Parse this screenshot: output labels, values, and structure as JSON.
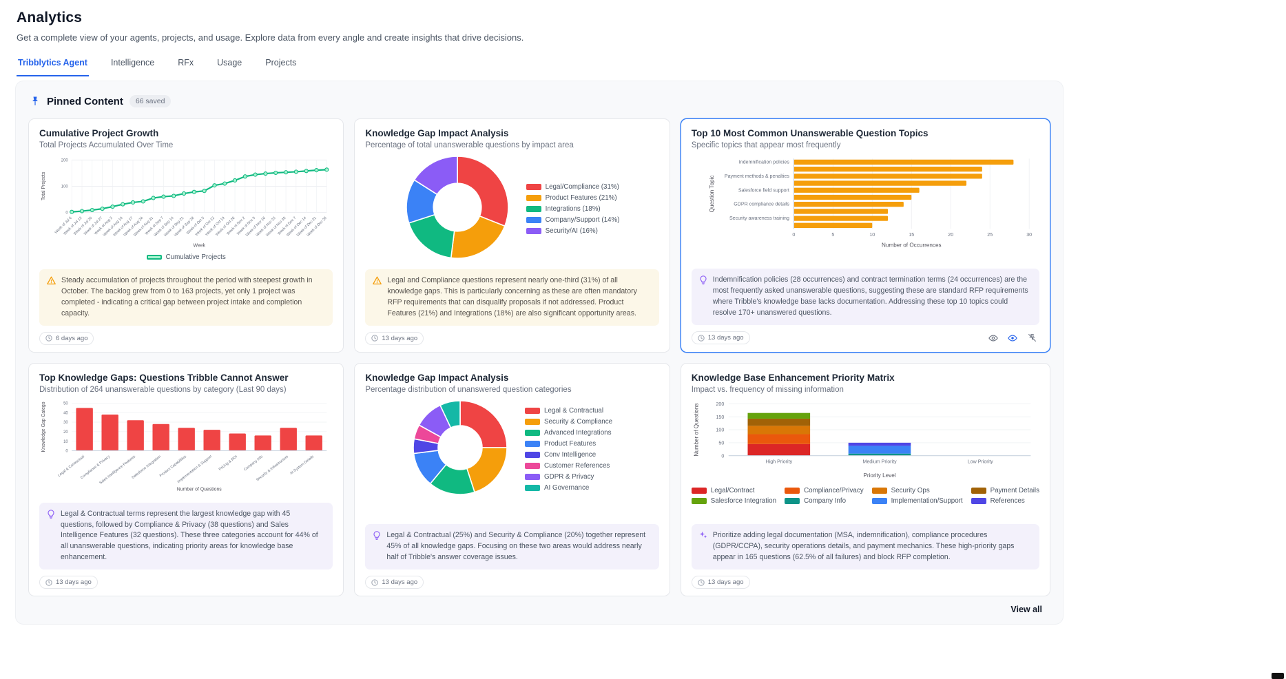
{
  "page": {
    "title": "Analytics",
    "subtitle": "Get a complete view of your agents, projects, and usage. Explore data from every angle and create insights that drive decisions."
  },
  "tabs": [
    {
      "label": "Tribblytics Agent",
      "active": true
    },
    {
      "label": "Intelligence",
      "active": false
    },
    {
      "label": "RFx",
      "active": false
    },
    {
      "label": "Usage",
      "active": false
    },
    {
      "label": "Projects",
      "active": false
    }
  ],
  "pinned": {
    "title": "Pinned Content",
    "badge": "66 saved",
    "view_all": "View all"
  },
  "cards": [
    {
      "title": "Cumulative Project Growth",
      "subtitle": "Total Projects Accumulated Over Time",
      "insight": "Steady accumulation of projects throughout the period with steepest growth in October. The backlog grew from 0 to 163 projects, yet only 1 project was completed - indicating a critical gap between project intake and completion capacity.",
      "age": "6 days ago"
    },
    {
      "title": "Knowledge Gap Impact Analysis",
      "subtitle": "Percentage of total unanswerable questions by impact area",
      "insight": "Legal and Compliance questions represent nearly one-third (31%) of all knowledge gaps. This is particularly concerning as these are often mandatory RFP requirements that can disqualify proposals if not addressed. Product Features (21%) and Integrations (18%) are also significant opportunity areas.",
      "age": "13 days ago"
    },
    {
      "title": "Top 10 Most Common Unanswerable Question Topics",
      "subtitle": "Specific topics that appear most frequently",
      "insight": "Indemnification policies (28 occurrences) and contract termination terms (24 occurrences) are the most frequently asked unanswerable questions, suggesting these are standard RFP requirements where Tribble's knowledge base lacks documentation. Addressing these top 10 topics could resolve 170+ unanswered questions.",
      "age": "13 days ago"
    },
    {
      "title": "Top Knowledge Gaps: Questions Tribble Cannot Answer",
      "subtitle": "Distribution of 264 unanswerable questions by category (Last 90 days)",
      "insight": "Legal & Contractual terms represent the largest knowledge gap with 45 questions, followed by Compliance & Privacy (38 questions) and Sales Intelligence Features (32 questions). These three categories account for 44% of all unanswerable questions, indicating priority areas for knowledge base enhancement.",
      "age": "13 days ago"
    },
    {
      "title": "Knowledge Gap Impact Analysis",
      "subtitle": "Percentage distribution of unanswered question categories",
      "insight": "Legal & Contractual (25%) and Security & Compliance (20%) together represent 45% of all knowledge gaps. Focusing on these two areas would address nearly half of Tribble's answer coverage issues.",
      "age": "13 days ago"
    },
    {
      "title": "Knowledge Base Enhancement Priority Matrix",
      "subtitle": "Impact vs. frequency of missing information",
      "insight": "Prioritize adding legal documentation (MSA, indemnification), compliance procedures (GDPR/CCPA), security operations details, and payment mechanics. These high-priority gaps appear in 165 questions (62.5% of all failures) and block RFP completion.",
      "age": "13 days ago"
    }
  ],
  "chart_data": [
    {
      "type": "line",
      "categories": [
        "Week of Jul 6",
        "Week of Jul 13",
        "Week of Jul 20",
        "Week of Jul 27",
        "Week of Aug 3",
        "Week of Aug 10",
        "Week of Aug 17",
        "Week of Aug 24",
        "Week of Aug 31",
        "Week of Sep 7",
        "Week of Sep 14",
        "Week of Sep 21",
        "Week of Sep 28",
        "Week of Oct 5",
        "Week of Oct 12",
        "Week of Oct 19",
        "Week of Oct 26",
        "Week of Nov 2",
        "Week of Nov 9",
        "Week of Nov 16",
        "Week of Nov 23",
        "Week of Nov 30",
        "Week of Dec 7",
        "Week of Dec 14",
        "Week of Dec 21",
        "Week of Dec 28"
      ],
      "values": [
        2,
        5,
        9,
        14,
        22,
        31,
        38,
        42,
        55,
        60,
        63,
        72,
        78,
        82,
        103,
        110,
        122,
        137,
        144,
        148,
        151,
        153,
        155,
        158,
        161,
        163
      ],
      "xlabel": "Week",
      "ylabel": "Total Projects",
      "ylim": [
        0,
        200
      ],
      "yticks": [
        0,
        100,
        200
      ],
      "color": "#10b981",
      "marker_fill": "#a7f3d0",
      "legend": [
        {
          "label": "Cumulative Projects",
          "color": "#10b981",
          "fill": "#a7f3d0"
        }
      ]
    },
    {
      "type": "donut",
      "values": [
        31,
        21,
        18,
        14,
        16
      ],
      "colors": [
        "#ef4444",
        "#f59e0b",
        "#10b981",
        "#3b82f6",
        "#8b5cf6"
      ],
      "legend": [
        {
          "label": "Legal/Compliance (31%)",
          "color": "#ef4444"
        },
        {
          "label": "Product Features (21%)",
          "color": "#f59e0b"
        },
        {
          "label": "Integrations (18%)",
          "color": "#10b981"
        },
        {
          "label": "Company/Support (14%)",
          "color": "#3b82f6"
        },
        {
          "label": "Security/AI (16%)",
          "color": "#8b5cf6"
        }
      ]
    },
    {
      "type": "hbar",
      "categories": [
        "Indemnification policies",
        "",
        "Payment methods & penalties",
        "",
        "Salesforce field support",
        "",
        "GDPR compliance details",
        "",
        "Security awareness training",
        ""
      ],
      "values": [
        28,
        24,
        24,
        22,
        16,
        15,
        14,
        12,
        12,
        10
      ],
      "color": "#f59e0b",
      "xlabel": "Number of Occurrences",
      "ylabel": "Question Topic",
      "xlim": [
        0,
        30
      ],
      "xticks": [
        0,
        5,
        10,
        15,
        20,
        25,
        30
      ]
    },
    {
      "type": "bar",
      "categories": [
        "Legal & Contractual",
        "Compliance & Privacy",
        "Sales Intelligence Features",
        "Salesforce Integration",
        "Product Capabilities",
        "Implementation & Support",
        "Pricing & ROI",
        "Company Info",
        "Security & Infrastructure",
        "AI System Details"
      ],
      "values": [
        45,
        38,
        32,
        28,
        24,
        22,
        18,
        16,
        24,
        16
      ],
      "color": "#ef4444",
      "xlabel": "Number of Questions",
      "ylabel": "Knowledge Gap Catego",
      "ylim": [
        0,
        50
      ],
      "yticks": [
        0,
        10,
        20,
        30,
        40,
        50
      ]
    },
    {
      "type": "donut",
      "values": [
        25,
        20,
        16,
        12,
        5,
        5,
        10,
        7
      ],
      "colors": [
        "#ef4444",
        "#f59e0b",
        "#10b981",
        "#3b82f6",
        "#4f46e5",
        "#ec4899",
        "#8b5cf6",
        "#14b8a6"
      ],
      "legend": [
        {
          "label": "Legal & Contractual",
          "color": "#ef4444"
        },
        {
          "label": "Security & Compliance",
          "color": "#f59e0b"
        },
        {
          "label": "Advanced Integrations",
          "color": "#10b981"
        },
        {
          "label": "Product Features",
          "color": "#3b82f6"
        },
        {
          "label": "Conv Intelligence",
          "color": "#4f46e5"
        },
        {
          "label": "Customer References",
          "color": "#ec4899"
        },
        {
          "label": "GDPR & Privacy",
          "color": "#8b5cf6"
        },
        {
          "label": "AI Governance",
          "color": "#14b8a6"
        }
      ]
    },
    {
      "type": "stacked_bar",
      "categories": [
        "High Priority",
        "Medium Priority",
        "Low Priority"
      ],
      "series": [
        {
          "name": "Legal/Contract",
          "color": "#dc2626",
          "values": [
            45,
            0,
            0
          ]
        },
        {
          "name": "Compliance/Privacy",
          "color": "#ea580c",
          "values": [
            38,
            0,
            0
          ]
        },
        {
          "name": "Security Ops",
          "color": "#d97706",
          "values": [
            32,
            0,
            0
          ]
        },
        {
          "name": "Payment Details",
          "color": "#a16207",
          "values": [
            28,
            0,
            0
          ]
        },
        {
          "name": "Salesforce Integration",
          "color": "#65a30d",
          "values": [
            22,
            0,
            0
          ]
        },
        {
          "name": "Company Info",
          "color": "#0d9488",
          "values": [
            0,
            8,
            0
          ]
        },
        {
          "name": "Implementation/Support",
          "color": "#3b82f6",
          "values": [
            0,
            30,
            0
          ]
        },
        {
          "name": "References",
          "color": "#4f46e5",
          "values": [
            0,
            12,
            0
          ]
        }
      ],
      "xlabel": "Priority Level",
      "ylabel": "Number of Questions",
      "ylim": [
        0,
        200
      ],
      "yticks": [
        0,
        50,
        100,
        150,
        200
      ]
    }
  ]
}
